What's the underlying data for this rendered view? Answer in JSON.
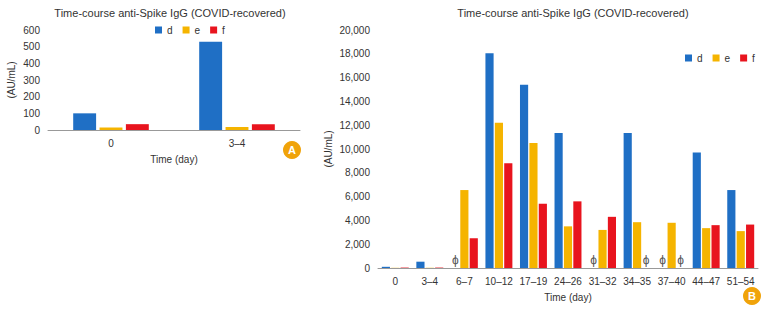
{
  "chart_data": [
    {
      "type": "bar",
      "title": "Time-course anti-Spike IgG (COVID-recovered)",
      "x_label": "Time (day)",
      "y_label": "(AU/mL)",
      "panel_label": "A",
      "categories": [
        "0",
        "3–4"
      ],
      "series": [
        {
          "name": "d",
          "color": "#1f6fc5",
          "values": [
            100,
            530
          ]
        },
        {
          "name": "e",
          "color": "#f5b400",
          "values": [
            15,
            18
          ]
        },
        {
          "name": "f",
          "color": "#e8141e",
          "values": [
            35,
            35
          ]
        }
      ],
      "ylim": [
        0,
        600
      ],
      "yticks": [
        0,
        100,
        200,
        300,
        400,
        500,
        600
      ],
      "grid": false,
      "legend": "top"
    },
    {
      "type": "bar",
      "title": "Time-course anti-Spike IgG (COVID-recovered)",
      "x_label": "Time (day)",
      "y_label": "(AU/mL)",
      "panel_label": "B",
      "categories": [
        "0",
        "3–4",
        "6–7",
        "10–12",
        "17–19",
        "24–26",
        "31–32",
        "34–35",
        "37–40",
        "44–47",
        "51–54"
      ],
      "series": [
        {
          "name": "d",
          "color": "#1f6fc5",
          "values": [
            100,
            530,
            null,
            18050,
            15400,
            11350,
            null,
            11350,
            null,
            9700,
            6550
          ]
        },
        {
          "name": "e",
          "color": "#f5b400",
          "values": [
            15,
            18,
            6550,
            12200,
            10500,
            3500,
            3200,
            3850,
            3800,
            3350,
            3100
          ]
        },
        {
          "name": "f",
          "color": "#e8141e",
          "values": [
            35,
            35,
            2500,
            8800,
            5400,
            5600,
            4300,
            null,
            null,
            3600,
            3650
          ]
        }
      ],
      "annotations": [
        {
          "category": "6–7",
          "series": "d",
          "text": "ϕ"
        },
        {
          "category": "31–32",
          "series": "d",
          "text": "ϕ"
        },
        {
          "category": "34–35",
          "series": "f",
          "text": "ϕ"
        },
        {
          "category": "37–40",
          "series": "d",
          "text": "ϕ"
        },
        {
          "category": "37–40",
          "series": "f",
          "text": "ϕ"
        }
      ],
      "ylim": [
        0,
        20000
      ],
      "yticks": [
        0,
        {
          "value": 2000,
          "label": "2,000"
        },
        {
          "value": 4000,
          "label": "4,000"
        },
        {
          "value": 6000,
          "label": "6,000"
        },
        {
          "value": 8000,
          "label": "8,000"
        },
        {
          "value": 10000,
          "label": "10,000"
        },
        {
          "value": 12000,
          "label": "12,000"
        },
        {
          "value": 14000,
          "label": "14,000"
        },
        {
          "value": 16000,
          "label": "16,000"
        },
        {
          "value": 18000,
          "label": "18,000"
        },
        {
          "value": 20000,
          "label": "20,000"
        }
      ],
      "grid": false,
      "legend": "top-right"
    }
  ]
}
